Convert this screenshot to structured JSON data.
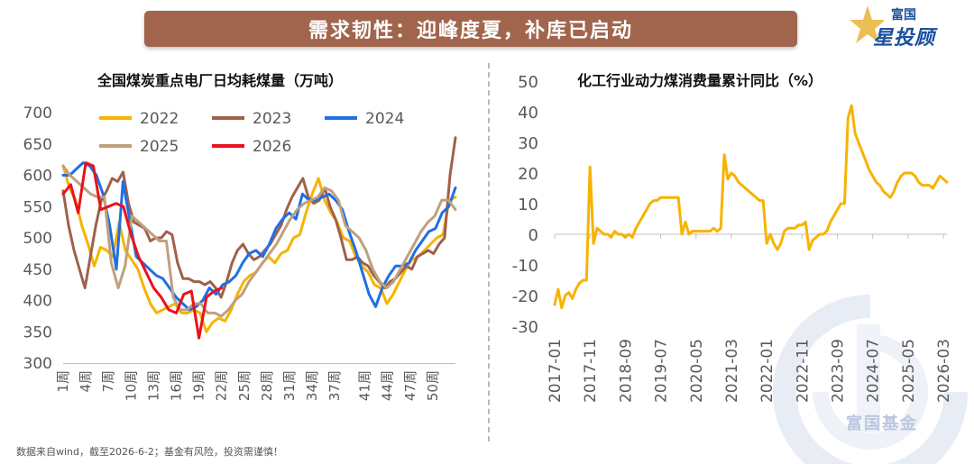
{
  "banner": {
    "title": "需求韧性：迎峰度夏，补库已启动"
  },
  "logo": {
    "top": "富国",
    "bottom": "星投顾",
    "watermark": "富国基金"
  },
  "source_note": "数据来自wind，截至2026-6-2；基金有风险，投资需谨慎！",
  "colors": {
    "banner": "#a1654d",
    "s2022": "#f5b400",
    "s2023": "#a0614b",
    "s2024": "#1f6fe5",
    "s2025": "#c0a07c",
    "s2026": "#e8121c",
    "right_line": "#f7b300"
  },
  "chart_data": [
    {
      "type": "line",
      "title": "全国煤炭重点电厂日均耗煤量（万吨）",
      "ylim": [
        300,
        700
      ],
      "yticks": [
        300,
        350,
        400,
        450,
        500,
        550,
        600,
        650,
        700
      ],
      "x_tick_labels": [
        "1周",
        "4周",
        "7周",
        "10周",
        "13周",
        "16周",
        "19周",
        "22周",
        "25周",
        "28周",
        "31周",
        "34周",
        "37周",
        "41周",
        "44周",
        "47周",
        "50周"
      ],
      "legend_position": "top",
      "series": [
        {
          "name": "2022",
          "values": [
            615,
            580,
            560,
            520,
            490,
            455,
            485,
            480,
            470,
            525,
            480,
            465,
            450,
            420,
            395,
            380,
            385,
            390,
            395,
            380,
            380,
            385,
            380,
            350,
            365,
            372,
            367,
            385,
            410,
            430,
            440,
            445,
            460,
            470,
            460,
            475,
            480,
            500,
            505,
            540,
            570,
            595,
            560,
            540,
            525,
            500,
            495,
            470,
            455,
            445,
            425,
            420,
            395,
            410,
            430,
            450,
            465,
            470,
            480,
            490,
            500,
            505,
            560,
            565
          ]
        },
        {
          "name": "2023",
          "values": [
            575,
            520,
            480,
            450,
            420,
            470,
            520,
            560,
            575,
            595,
            590,
            605,
            555,
            525,
            520,
            515,
            495,
            500,
            500,
            510,
            505,
            460,
            435,
            435,
            430,
            430,
            425,
            430,
            420,
            405,
            430,
            460,
            480,
            490,
            475,
            465,
            470,
            480,
            490,
            505,
            520,
            545,
            565,
            580,
            595,
            565,
            555,
            560,
            580,
            550,
            530,
            500,
            465,
            465,
            470,
            460,
            455,
            440,
            430,
            420,
            430,
            435,
            445,
            455,
            450,
            470,
            475,
            480,
            475,
            490,
            500,
            600,
            660
          ]
        },
        {
          "name": "2024",
          "values": [
            600,
            600,
            610,
            620,
            615,
            600,
            570,
            520,
            450,
            590,
            530,
            470,
            460,
            450,
            440,
            435,
            420,
            405,
            395,
            385,
            390,
            400,
            420,
            410,
            425,
            430,
            440,
            460,
            475,
            480,
            470,
            490,
            515,
            530,
            540,
            530,
            570,
            560,
            560,
            565,
            570,
            560,
            545,
            510,
            480,
            445,
            410,
            390,
            420,
            440,
            455,
            455,
            460,
            480,
            495,
            510,
            515,
            540,
            550,
            580
          ]
        },
        {
          "name": "2025",
          "values": [
            615,
            600,
            590,
            580,
            570,
            565,
            565,
            460,
            420,
            455,
            535,
            525,
            515,
            505,
            495,
            495,
            405,
            385,
            385,
            395,
            395,
            380,
            380,
            375,
            385,
            400,
            410,
            430,
            445,
            460,
            475,
            490,
            510,
            530,
            545,
            555,
            560,
            565,
            580,
            575,
            560,
            520,
            510,
            500,
            480,
            450,
            430,
            420,
            430,
            450,
            470,
            490,
            510,
            525,
            535,
            560,
            560,
            545
          ]
        },
        {
          "name": "2026",
          "values": [
            570,
            585,
            540,
            620,
            615,
            545,
            550,
            555,
            550,
            505,
            470,
            445,
            420,
            405,
            385,
            380,
            410,
            415,
            340,
            405,
            415,
            420
          ]
        }
      ]
    },
    {
      "type": "line",
      "title": "化工行业动力煤消费量累计同比（%）",
      "ylim": [
        -30,
        50
      ],
      "yticks": [
        -30,
        -20,
        -10,
        0,
        10,
        20,
        30,
        40,
        50
      ],
      "x_tick_labels": [
        "2017-01",
        "2017-11",
        "2018-09",
        "2019-07",
        "2020-05",
        "2021-03",
        "2022-01",
        "2022-11",
        "2023-09",
        "2024-07",
        "2025-05",
        "2026-03"
      ],
      "x_range": [
        "2017-01",
        "2026-04"
      ],
      "series": [
        {
          "name": "",
          "points": [
            [
              "2017-01",
              -23
            ],
            [
              "2017-02",
              -18
            ],
            [
              "2017-03",
              -24
            ],
            [
              "2017-04",
              -20
            ],
            [
              "2017-05",
              -19
            ],
            [
              "2017-06",
              -21
            ],
            [
              "2017-07",
              -18
            ],
            [
              "2017-08",
              -16
            ],
            [
              "2017-09",
              -15
            ],
            [
              "2017-10",
              -15
            ],
            [
              "2017-11",
              22
            ],
            [
              "2017-12",
              -3
            ],
            [
              "2018-01",
              2
            ],
            [
              "2018-02",
              1
            ],
            [
              "2018-03",
              0
            ],
            [
              "2018-04",
              0
            ],
            [
              "2018-05",
              -1
            ],
            [
              "2018-06",
              1
            ],
            [
              "2018-07",
              0
            ],
            [
              "2018-08",
              0
            ],
            [
              "2018-09",
              -1
            ],
            [
              "2018-10",
              0
            ],
            [
              "2018-11",
              -1
            ],
            [
              "2018-12",
              2
            ],
            [
              "2019-01",
              4
            ],
            [
              "2019-02",
              6
            ],
            [
              "2019-03",
              8
            ],
            [
              "2019-04",
              10
            ],
            [
              "2019-05",
              11
            ],
            [
              "2019-06",
              11
            ],
            [
              "2019-07",
              12
            ],
            [
              "2019-08",
              12
            ],
            [
              "2019-09",
              12
            ],
            [
              "2019-10",
              12
            ],
            [
              "2019-11",
              12
            ],
            [
              "2019-12",
              12
            ],
            [
              "2020-01",
              0
            ],
            [
              "2020-02",
              4
            ],
            [
              "2020-03",
              0
            ],
            [
              "2020-04",
              1
            ],
            [
              "2020-05",
              1
            ],
            [
              "2020-06",
              1
            ],
            [
              "2020-07",
              1
            ],
            [
              "2020-08",
              1
            ],
            [
              "2020-09",
              1
            ],
            [
              "2020-10",
              2
            ],
            [
              "2020-11",
              1
            ],
            [
              "2020-12",
              2
            ],
            [
              "2021-01",
              26
            ],
            [
              "2021-02",
              18
            ],
            [
              "2021-03",
              20
            ],
            [
              "2021-04",
              19
            ],
            [
              "2021-05",
              17
            ],
            [
              "2021-06",
              16
            ],
            [
              "2021-07",
              15
            ],
            [
              "2021-08",
              14
            ],
            [
              "2021-09",
              13
            ],
            [
              "2021-10",
              12
            ],
            [
              "2021-11",
              11
            ],
            [
              "2021-12",
              11
            ],
            [
              "2022-01",
              -3
            ],
            [
              "2022-02",
              0
            ],
            [
              "2022-03",
              -3
            ],
            [
              "2022-04",
              -5
            ],
            [
              "2022-05",
              -3
            ],
            [
              "2022-06",
              1
            ],
            [
              "2022-07",
              2
            ],
            [
              "2022-08",
              2
            ],
            [
              "2022-09",
              2
            ],
            [
              "2022-10",
              3
            ],
            [
              "2022-11",
              3
            ],
            [
              "2022-12",
              4
            ],
            [
              "2023-01",
              -5
            ],
            [
              "2023-02",
              -2
            ],
            [
              "2023-03",
              -1
            ],
            [
              "2023-04",
              0
            ],
            [
              "2023-05",
              0
            ],
            [
              "2023-06",
              1
            ],
            [
              "2023-07",
              4
            ],
            [
              "2023-08",
              6
            ],
            [
              "2023-09",
              8
            ],
            [
              "2023-10",
              10
            ],
            [
              "2023-11",
              10
            ],
            [
              "2023-12",
              38
            ],
            [
              "2024-01",
              42
            ],
            [
              "2024-02",
              33
            ],
            [
              "2024-03",
              30
            ],
            [
              "2024-04",
              27
            ],
            [
              "2024-05",
              24
            ],
            [
              "2024-06",
              21
            ],
            [
              "2024-07",
              19
            ],
            [
              "2024-08",
              17
            ],
            [
              "2024-09",
              16
            ],
            [
              "2024-10",
              14
            ],
            [
              "2024-11",
              13
            ],
            [
              "2024-12",
              12
            ],
            [
              "2025-01",
              14
            ],
            [
              "2025-02",
              17
            ],
            [
              "2025-03",
              19
            ],
            [
              "2025-04",
              20
            ],
            [
              "2025-05",
              20
            ],
            [
              "2025-06",
              20
            ],
            [
              "2025-07",
              19
            ],
            [
              "2025-08",
              17
            ],
            [
              "2025-09",
              16
            ],
            [
              "2025-10",
              16
            ],
            [
              "2025-11",
              16
            ],
            [
              "2025-12",
              15
            ],
            [
              "2026-01",
              17
            ],
            [
              "2026-02",
              19
            ],
            [
              "2026-03",
              18
            ],
            [
              "2026-04",
              17
            ]
          ]
        }
      ]
    }
  ]
}
